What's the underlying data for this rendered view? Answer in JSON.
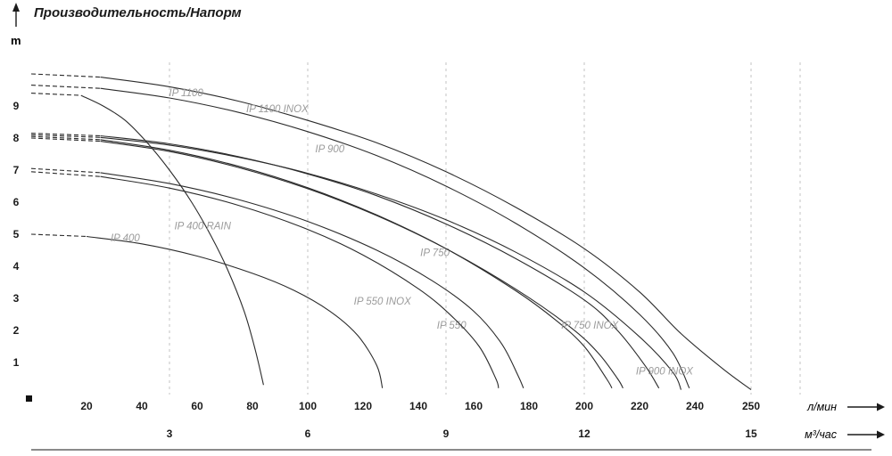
{
  "chart_data": {
    "type": "line",
    "title": "Производительность/Напорм",
    "ylabel": "m",
    "xlabel": "л/мин",
    "xlabel_secondary": "м³/час",
    "xlim": [
      0,
      260
    ],
    "ylim": [
      0,
      10
    ],
    "grid": "vertical-dashed",
    "legend_position": "inline-curve-labels",
    "y_ticks": [
      1,
      2,
      3,
      4,
      5,
      6,
      7,
      8,
      9
    ],
    "x_ticks_lmin": [
      20,
      40,
      60,
      80,
      100,
      120,
      140,
      160,
      180,
      200,
      220,
      240,
      250
    ],
    "x_ticks_m3h": [
      {
        "label": "3",
        "lmin": 50
      },
      {
        "label": "6",
        "lmin": 100
      },
      {
        "label": "9",
        "lmin": 150
      },
      {
        "label": "12",
        "lmin": 200
      },
      {
        "label": "15",
        "lmin": 250
      }
    ],
    "series": [
      {
        "name": "IP 1100",
        "label_at": [
          56,
          9.3
        ],
        "points": [
          [
            0,
            10.0
          ],
          [
            25,
            9.9
          ],
          [
            50,
            9.6
          ],
          [
            75,
            9.15
          ],
          [
            100,
            8.55
          ],
          [
            125,
            7.85
          ],
          [
            150,
            6.95
          ],
          [
            175,
            5.85
          ],
          [
            200,
            4.55
          ],
          [
            220,
            3.2
          ],
          [
            235,
            1.9
          ],
          [
            245,
            0.8
          ],
          [
            250,
            0.15
          ]
        ]
      },
      {
        "name": "IP 1100 INOX",
        "label_at": [
          89,
          8.8
        ],
        "points": [
          [
            0,
            9.65
          ],
          [
            25,
            9.55
          ],
          [
            50,
            9.25
          ],
          [
            75,
            8.8
          ],
          [
            100,
            8.2
          ],
          [
            125,
            7.45
          ],
          [
            150,
            6.5
          ],
          [
            175,
            5.35
          ],
          [
            200,
            3.95
          ],
          [
            220,
            2.5
          ],
          [
            232,
            1.3
          ],
          [
            238,
            0.2
          ]
        ]
      },
      {
        "name": "IP 900",
        "label_at": [
          108,
          7.55
        ],
        "points": [
          [
            0,
            8.15
          ],
          [
            25,
            8.07
          ],
          [
            50,
            7.82
          ],
          [
            75,
            7.42
          ],
          [
            100,
            6.88
          ],
          [
            125,
            6.2
          ],
          [
            150,
            5.32
          ],
          [
            175,
            4.25
          ],
          [
            200,
            2.95
          ],
          [
            212,
            2.0
          ],
          [
            222,
            0.9
          ],
          [
            227,
            0.2
          ]
        ]
      },
      {
        "name": "IP 900 INOX",
        "label_at": [
          229,
          0.62
        ],
        "points": [
          [
            0,
            8.1
          ],
          [
            25,
            8.02
          ],
          [
            50,
            7.78
          ],
          [
            75,
            7.4
          ],
          [
            100,
            6.9
          ],
          [
            125,
            6.25
          ],
          [
            150,
            5.45
          ],
          [
            175,
            4.45
          ],
          [
            200,
            3.2
          ],
          [
            220,
            1.8
          ],
          [
            232,
            0.7
          ],
          [
            235,
            0.15
          ]
        ]
      },
      {
        "name": "IP 750",
        "label_at": [
          146,
          4.32
        ],
        "points": [
          [
            0,
            8.05
          ],
          [
            25,
            7.95
          ],
          [
            50,
            7.62
          ],
          [
            75,
            7.12
          ],
          [
            100,
            6.45
          ],
          [
            125,
            5.6
          ],
          [
            150,
            4.55
          ],
          [
            175,
            3.25
          ],
          [
            190,
            2.3
          ],
          [
            200,
            1.5
          ],
          [
            208,
            0.5
          ],
          [
            210,
            0.2
          ]
        ]
      },
      {
        "name": "IP 750 INOX",
        "label_at": [
          202,
          2.05
        ],
        "points": [
          [
            0,
            8.0
          ],
          [
            25,
            7.9
          ],
          [
            50,
            7.58
          ],
          [
            75,
            7.08
          ],
          [
            100,
            6.42
          ],
          [
            125,
            5.58
          ],
          [
            150,
            4.55
          ],
          [
            175,
            3.3
          ],
          [
            195,
            2.1
          ],
          [
            205,
            1.3
          ],
          [
            212,
            0.5
          ],
          [
            214,
            0.2
          ]
        ]
      },
      {
        "name": "IP 550",
        "label_at": [
          152,
          2.05
        ],
        "points": [
          [
            0,
            7.05
          ],
          [
            25,
            6.92
          ],
          [
            50,
            6.58
          ],
          [
            75,
            6.08
          ],
          [
            100,
            5.4
          ],
          [
            125,
            4.5
          ],
          [
            145,
            3.55
          ],
          [
            160,
            2.6
          ],
          [
            170,
            1.6
          ],
          [
            176,
            0.6
          ],
          [
            178,
            0.2
          ]
        ]
      },
      {
        "name": "IP 550 INOX",
        "label_at": [
          127,
          2.8
        ],
        "points": [
          [
            0,
            6.95
          ],
          [
            25,
            6.8
          ],
          [
            50,
            6.44
          ],
          [
            75,
            5.9
          ],
          [
            100,
            5.15
          ],
          [
            120,
            4.35
          ],
          [
            140,
            3.3
          ],
          [
            152,
            2.45
          ],
          [
            162,
            1.5
          ],
          [
            168,
            0.5
          ],
          [
            169,
            0.2
          ]
        ]
      },
      {
        "name": "IP 400",
        "label_at": [
          34,
          4.78
        ],
        "points": [
          [
            0,
            5.0
          ],
          [
            20,
            4.93
          ],
          [
            40,
            4.7
          ],
          [
            60,
            4.32
          ],
          [
            80,
            3.78
          ],
          [
            95,
            3.25
          ],
          [
            108,
            2.6
          ],
          [
            118,
            1.85
          ],
          [
            125,
            0.9
          ],
          [
            127,
            0.2
          ]
        ]
      },
      {
        "name": "IP 400 RAIN",
        "label_at": [
          62,
          5.15
        ],
        "points": [
          [
            0,
            9.4
          ],
          [
            18,
            9.33
          ],
          [
            26,
            9.0
          ],
          [
            34,
            8.55
          ],
          [
            42,
            7.85
          ],
          [
            50,
            7.0
          ],
          [
            58,
            6.0
          ],
          [
            65,
            4.95
          ],
          [
            71,
            3.9
          ],
          [
            77,
            2.6
          ],
          [
            81,
            1.4
          ],
          [
            84,
            0.3
          ]
        ]
      }
    ]
  },
  "colors": {
    "curve": "#2b2b2b",
    "curve_label": "#9b9b9b",
    "grid": "#c3c3c3",
    "axis_text": "#1b1b1b",
    "axis_line": "#444444"
  }
}
